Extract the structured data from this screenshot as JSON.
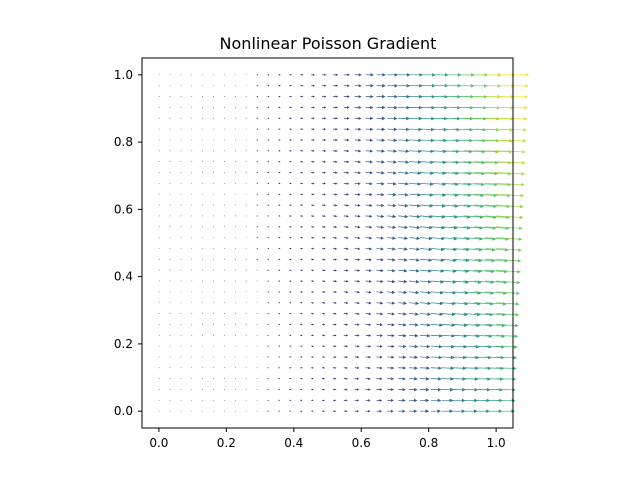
{
  "chart_data": {
    "type": "quiver",
    "title": "Nonlinear Poisson Gradient",
    "xlabel": "",
    "ylabel": "",
    "xlim": [
      -0.05,
      1.05
    ],
    "ylim": [
      -0.05,
      1.05
    ],
    "xticks": [
      "0.0",
      "0.2",
      "0.4",
      "0.6",
      "0.8",
      "1.0"
    ],
    "yticks": [
      "0.0",
      "0.2",
      "0.4",
      "0.6",
      "0.8",
      "1.0"
    ],
    "grid": false,
    "legend": "none",
    "colormap": "viridis",
    "field": {
      "x_range": [
        0,
        1
      ],
      "y_range": [
        0,
        1
      ],
      "samples_x": 32,
      "samples_y": 32,
      "description": "vectors point mainly in +x, magnitude grows toward x=1 and y=1"
    }
  }
}
